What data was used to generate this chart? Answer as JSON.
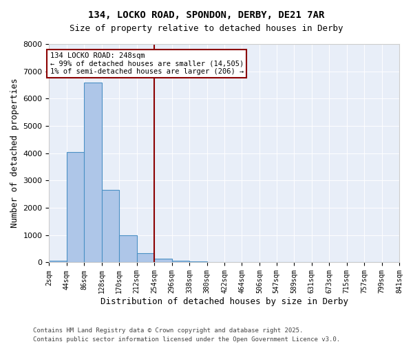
{
  "title1": "134, LOCKO ROAD, SPONDON, DERBY, DE21 7AR",
  "title2": "Size of property relative to detached houses in Derby",
  "xlabel": "Distribution of detached houses by size in Derby",
  "ylabel": "Number of detached properties",
  "footnote1": "Contains HM Land Registry data © Crown copyright and database right 2025.",
  "footnote2": "Contains public sector information licensed under the Open Government Licence v3.0.",
  "annotation_line1": "134 LOCKO ROAD: 248sqm",
  "annotation_line2": "← 99% of detached houses are smaller (14,505)",
  "annotation_line3": "1% of semi-detached houses are larger (206) →",
  "bins": [
    2,
    44,
    86,
    128,
    170,
    212,
    254,
    296,
    338,
    380,
    422,
    464,
    506,
    547,
    589,
    631,
    673,
    715,
    757,
    799,
    841
  ],
  "values": [
    60,
    4050,
    6600,
    2650,
    1000,
    350,
    130,
    60,
    30,
    10,
    0,
    0,
    0,
    0,
    0,
    0,
    0,
    0,
    0,
    0
  ],
  "bar_color": "#aec6e8",
  "bar_edge_color": "#4a90c4",
  "vline_x": 254,
  "vline_color": "#8b0000",
  "box_color": "#8b0000",
  "background_color": "#e8eef8",
  "ylim": [
    0,
    8000
  ],
  "yticks": [
    0,
    1000,
    2000,
    3000,
    4000,
    5000,
    6000,
    7000,
    8000
  ],
  "bin_labels": [
    "2sqm",
    "44sqm",
    "86sqm",
    "128sqm",
    "170sqm",
    "212sqm",
    "254sqm",
    "296sqm",
    "338sqm",
    "380sqm",
    "422sqm",
    "464sqm",
    "506sqm",
    "547sqm",
    "589sqm",
    "631sqm",
    "673sqm",
    "715sqm",
    "757sqm",
    "799sqm",
    "841sqm"
  ]
}
